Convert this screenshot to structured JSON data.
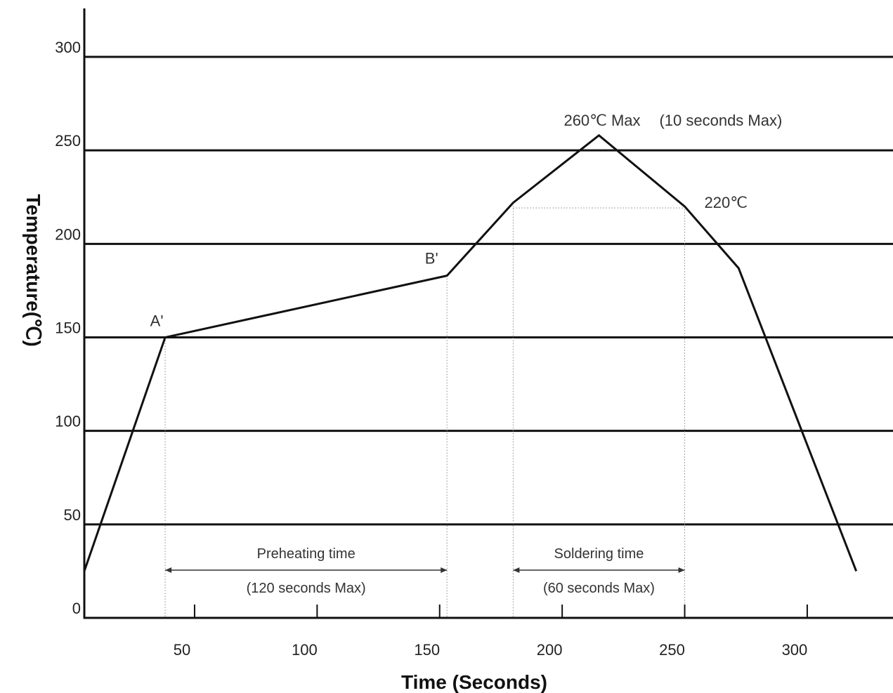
{
  "chart_data": {
    "type": "line",
    "xlabel": "Time (Seconds)",
    "ylabel": "Temperature(℃)",
    "xlim": [
      5,
      335
    ],
    "ylim": [
      0,
      300
    ],
    "x_ticks": [
      50,
      100,
      150,
      200,
      250,
      300
    ],
    "y_ticks": [
      0,
      50,
      100,
      150,
      200,
      250,
      300
    ],
    "grid": "horizontal",
    "series": [
      {
        "x": [
          5,
          38,
          153,
          180,
          215,
          250,
          272,
          320
        ],
        "y": [
          25,
          150,
          183,
          222,
          258,
          220,
          187,
          25
        ]
      }
    ],
    "point_labels": [
      {
        "text": "A'",
        "x": 38,
        "y": 150
      },
      {
        "text": "B'",
        "x": 153,
        "y": 183
      },
      {
        "text": "260℃ Max",
        "x": 215,
        "y": 258
      },
      {
        "text": "(10 seconds Max)",
        "x": 215,
        "y": 258
      },
      {
        "text": "220℃",
        "x": 250,
        "y": 220
      }
    ],
    "intervals": [
      {
        "label": "Preheating time",
        "sublabel": "(120 seconds Max)",
        "x_start": 38,
        "x_end": 153
      },
      {
        "label": "Soldering time",
        "sublabel": "(60 seconds Max)",
        "x_start": 180,
        "x_end": 250
      }
    ],
    "colors": {
      "line": "#111111",
      "grid": "#111111",
      "guide": "#888888"
    }
  }
}
